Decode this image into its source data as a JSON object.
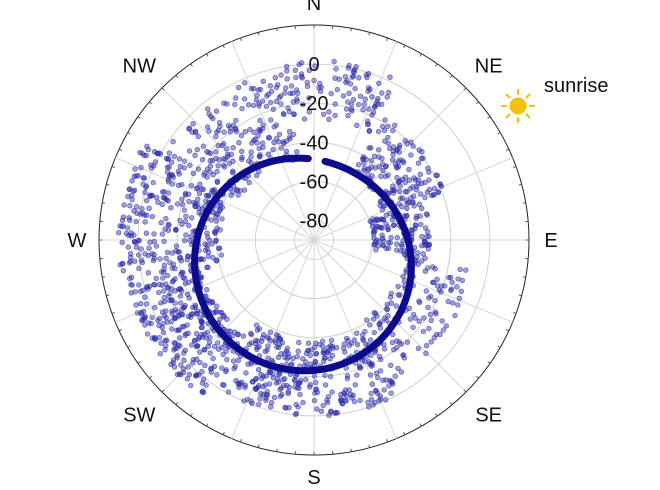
{
  "chart_data": {
    "type": "scatter",
    "projection": "polar",
    "angular_axis": {
      "labels": [
        "N",
        "NE",
        "E",
        "SE",
        "S",
        "SW",
        "W",
        "NW"
      ],
      "angles_deg": [
        0,
        45,
        90,
        135,
        180,
        225,
        270,
        315
      ],
      "direction": "clockwise",
      "zero_at": "top"
    },
    "radial_axis": {
      "ticks": [
        0,
        -20,
        -40,
        -60,
        -80
      ],
      "range": [
        -90,
        20
      ],
      "center_value": -90
    },
    "colors": {
      "points": "#2b2ba8",
      "ring": "#0b0b8c",
      "sun": "#f4c20d",
      "grid": "#cfcfcf"
    },
    "series": [
      {
        "kind": "points",
        "clusters": [
          {
            "az_from": 8,
            "az_to": 28,
            "alt_from": -28,
            "alt_to": 2,
            "count": 60
          },
          {
            "az_from": 30,
            "az_to": 70,
            "alt_from": -52,
            "alt_to": -18,
            "count": 150
          },
          {
            "az_from": 70,
            "az_to": 100,
            "alt_from": -60,
            "alt_to": -30,
            "count": 120
          },
          {
            "az_from": 100,
            "az_to": 150,
            "alt_from": -42,
            "alt_to": -8,
            "count": 130
          },
          {
            "az_from": 150,
            "az_to": 215,
            "alt_from": -38,
            "alt_to": 0,
            "count": 330
          },
          {
            "az_from": 215,
            "az_to": 255,
            "alt_from": -30,
            "alt_to": 8,
            "count": 280
          },
          {
            "az_from": 255,
            "az_to": 300,
            "alt_from": -42,
            "alt_to": 10,
            "count": 300
          },
          {
            "az_from": 300,
            "az_to": 350,
            "alt_from": -48,
            "alt_to": -2,
            "count": 200
          },
          {
            "az_from": 350,
            "az_to": 368,
            "alt_from": -28,
            "alt_to": 2,
            "count": 40
          }
        ]
      },
      {
        "kind": "ring",
        "altitude_fn": "-36 - 14*cos(az - 25deg)",
        "az_gap": [
          356,
          8
        ]
      }
    ],
    "annotation": {
      "text": "sunrise",
      "icon": "sun-icon"
    }
  }
}
